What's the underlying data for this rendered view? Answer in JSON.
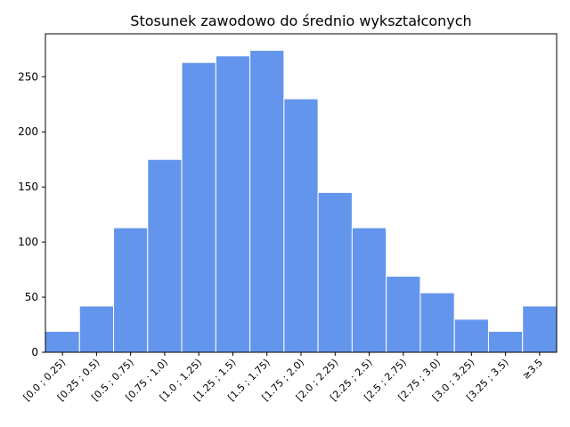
{
  "chart_data": {
    "type": "bar",
    "title": "Stosunek zawodowo do średnio wykształconych",
    "xlabel": "",
    "ylabel": "",
    "categories": [
      "[0.0 ; 0.25)",
      "[0.25 ; 0.5)",
      "[0.5 ; 0.75)",
      "[0.75 ; 1.0)",
      "[1.0 ; 1.25)",
      "[1.25 ; 1.5)",
      "[1.5 ; 1.75)",
      "[1.75 ; 2.0)",
      "[2.0 ; 2.25)",
      "[2.25 ; 2.5)",
      "[2.5 ; 2.75)",
      "[2.75 ; 3.0)",
      "[3.0 ; 3.25)",
      "[3.25 ; 3.5)",
      "≥3.5"
    ],
    "values": [
      19,
      42,
      113,
      175,
      263,
      269,
      274,
      230,
      145,
      113,
      69,
      54,
      30,
      19,
      42
    ],
    "ylim": [
      0,
      289
    ],
    "yticks": [
      0,
      50,
      100,
      150,
      200,
      250
    ],
    "grid": false,
    "bar_color": "#6495ED",
    "edge_color": "#ffffff"
  }
}
